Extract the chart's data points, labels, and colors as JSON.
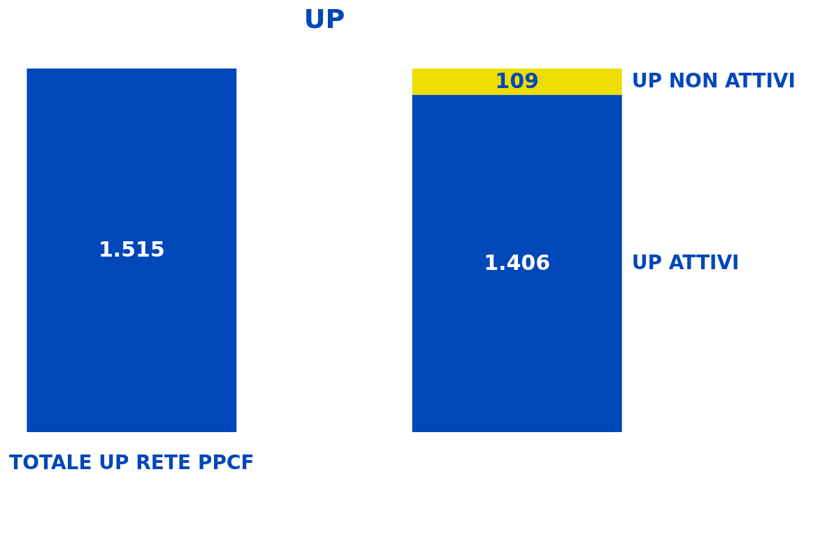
{
  "chart_data": {
    "type": "bar",
    "title": "UP",
    "stacked": true,
    "categories": [
      "TOTALE UP RETE PPCF",
      null
    ],
    "series": [
      {
        "color": "#0047b9",
        "values": [
          1515,
          null
        ],
        "value_labels": [
          "1.515",
          null
        ]
      },
      {
        "name": "UP ATTIVI",
        "color": "#0047b9",
        "values": [
          null,
          1406
        ],
        "value_labels": [
          null,
          "1.406"
        ]
      },
      {
        "name": "UP NON ATTIVI",
        "color": "#eedd00",
        "values": [
          null,
          109
        ],
        "value_labels": [
          null,
          "109"
        ]
      }
    ],
    "tick_labels": "x"
  }
}
